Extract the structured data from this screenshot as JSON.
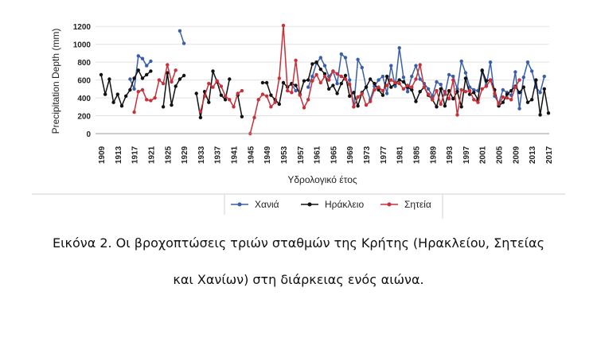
{
  "chart_data": {
    "type": "line",
    "title": "",
    "xlabel": "Υδρολογικό έτος",
    "ylabel": "Precipitation Depth (mm)",
    "ylim": [
      0,
      1300
    ],
    "yticks": [
      0,
      200,
      400,
      600,
      800,
      1000,
      1200
    ],
    "xlim": [
      1909,
      2017
    ],
    "xticks": [
      1909,
      1913,
      1917,
      1921,
      1925,
      1929,
      1933,
      1937,
      1941,
      1945,
      1949,
      1953,
      1957,
      1961,
      1965,
      1969,
      1973,
      1977,
      1981,
      1985,
      1989,
      1993,
      1997,
      2001,
      2005,
      2009,
      2013,
      2017
    ],
    "grid": true,
    "legend_position": "bottom",
    "series": [
      {
        "name": "Χανιά",
        "color": "#3a5fa8",
        "points": [
          [
            1916,
            610
          ],
          [
            1917,
            500
          ],
          [
            1918,
            870
          ],
          [
            1919,
            840
          ],
          [
            1920,
            760
          ],
          [
            1921,
            810
          ],
          [
            1928,
            1150
          ],
          [
            1929,
            1010
          ],
          [
            1955,
            550
          ],
          [
            1956,
            480
          ],
          [
            1959,
            520
          ],
          [
            1960,
            640
          ],
          [
            1961,
            790
          ],
          [
            1962,
            850
          ],
          [
            1963,
            760
          ],
          [
            1964,
            640
          ],
          [
            1965,
            700
          ],
          [
            1966,
            560
          ],
          [
            1967,
            890
          ],
          [
            1968,
            850
          ],
          [
            1969,
            600
          ],
          [
            1970,
            300
          ],
          [
            1971,
            830
          ],
          [
            1972,
            740
          ],
          [
            1973,
            520
          ],
          [
            1974,
            380
          ],
          [
            1975,
            530
          ],
          [
            1976,
            600
          ],
          [
            1977,
            640
          ],
          [
            1978,
            450
          ],
          [
            1979,
            760
          ],
          [
            1980,
            530
          ],
          [
            1981,
            960
          ],
          [
            1982,
            630
          ],
          [
            1983,
            470
          ],
          [
            1984,
            640
          ],
          [
            1985,
            760
          ],
          [
            1986,
            610
          ],
          [
            1987,
            560
          ],
          [
            1988,
            500
          ],
          [
            1989,
            420
          ],
          [
            1990,
            580
          ],
          [
            1991,
            550
          ],
          [
            1992,
            440
          ],
          [
            1993,
            660
          ],
          [
            1994,
            640
          ],
          [
            1995,
            500
          ],
          [
            1996,
            810
          ],
          [
            1997,
            680
          ],
          [
            1998,
            520
          ],
          [
            1999,
            490
          ],
          [
            2000,
            480
          ],
          [
            2001,
            700
          ],
          [
            2002,
            540
          ],
          [
            2003,
            800
          ],
          [
            2004,
            420
          ],
          [
            2005,
            340
          ],
          [
            2006,
            490
          ],
          [
            2007,
            460
          ],
          [
            2008,
            430
          ],
          [
            2009,
            690
          ],
          [
            2010,
            280
          ],
          [
            2011,
            630
          ],
          [
            2012,
            800
          ],
          [
            2013,
            700
          ],
          [
            2014,
            520
          ],
          [
            2015,
            460
          ],
          [
            2016,
            640
          ]
        ]
      },
      {
        "name": "Ηράκλειο",
        "color": "#111111",
        "points": [
          [
            1909,
            660
          ],
          [
            1910,
            440
          ],
          [
            1911,
            610
          ],
          [
            1912,
            350
          ],
          [
            1913,
            440
          ],
          [
            1914,
            310
          ],
          [
            1915,
            420
          ],
          [
            1916,
            490
          ],
          [
            1917,
            620
          ],
          [
            1918,
            710
          ],
          [
            1919,
            620
          ],
          [
            1920,
            660
          ],
          [
            1921,
            700
          ],
          [
            1924,
            300
          ],
          [
            1925,
            680
          ],
          [
            1926,
            320
          ],
          [
            1927,
            530
          ],
          [
            1928,
            610
          ],
          [
            1929,
            650
          ],
          [
            1932,
            450
          ],
          [
            1933,
            180
          ],
          [
            1934,
            470
          ],
          [
            1935,
            350
          ],
          [
            1936,
            700
          ],
          [
            1937,
            580
          ],
          [
            1938,
            430
          ],
          [
            1939,
            380
          ],
          [
            1940,
            610
          ],
          [
            1942,
            430
          ],
          [
            1943,
            190
          ],
          [
            1948,
            570
          ],
          [
            1949,
            570
          ],
          [
            1950,
            430
          ],
          [
            1951,
            380
          ],
          [
            1952,
            330
          ],
          [
            1953,
            570
          ],
          [
            1954,
            520
          ],
          [
            1955,
            560
          ],
          [
            1956,
            540
          ],
          [
            1957,
            440
          ],
          [
            1958,
            590
          ],
          [
            1959,
            600
          ],
          [
            1960,
            780
          ],
          [
            1961,
            800
          ],
          [
            1962,
            720
          ],
          [
            1963,
            670
          ],
          [
            1964,
            500
          ],
          [
            1965,
            540
          ],
          [
            1966,
            450
          ],
          [
            1967,
            560
          ],
          [
            1968,
            650
          ],
          [
            1969,
            420
          ],
          [
            1970,
            460
          ],
          [
            1971,
            310
          ],
          [
            1972,
            460
          ],
          [
            1973,
            520
          ],
          [
            1974,
            610
          ],
          [
            1975,
            560
          ],
          [
            1976,
            490
          ],
          [
            1977,
            430
          ],
          [
            1978,
            640
          ],
          [
            1979,
            520
          ],
          [
            1980,
            560
          ],
          [
            1981,
            600
          ],
          [
            1982,
            580
          ],
          [
            1983,
            520
          ],
          [
            1984,
            490
          ],
          [
            1985,
            360
          ],
          [
            1986,
            470
          ],
          [
            1987,
            520
          ],
          [
            1988,
            430
          ],
          [
            1989,
            380
          ],
          [
            1990,
            300
          ],
          [
            1991,
            500
          ],
          [
            1992,
            310
          ],
          [
            1993,
            480
          ],
          [
            1994,
            390
          ],
          [
            1995,
            470
          ],
          [
            1996,
            300
          ],
          [
            1997,
            620
          ],
          [
            1998,
            440
          ],
          [
            1999,
            460
          ],
          [
            2000,
            380
          ],
          [
            2001,
            710
          ],
          [
            2002,
            590
          ],
          [
            2003,
            600
          ],
          [
            2004,
            490
          ],
          [
            2005,
            310
          ],
          [
            2006,
            350
          ],
          [
            2007,
            440
          ],
          [
            2008,
            480
          ],
          [
            2009,
            530
          ],
          [
            2010,
            460
          ],
          [
            2011,
            520
          ],
          [
            2012,
            350
          ],
          [
            2013,
            380
          ],
          [
            2014,
            600
          ],
          [
            2015,
            210
          ],
          [
            2016,
            500
          ],
          [
            2017,
            230
          ]
        ]
      },
      {
        "name": "Σητεία",
        "color": "#c8303a",
        "points": [
          [
            1917,
            240
          ],
          [
            1918,
            470
          ],
          [
            1919,
            490
          ],
          [
            1920,
            380
          ],
          [
            1921,
            370
          ],
          [
            1922,
            400
          ],
          [
            1923,
            600
          ],
          [
            1924,
            560
          ],
          [
            1925,
            770
          ],
          [
            1926,
            580
          ],
          [
            1927,
            710
          ],
          [
            1933,
            250
          ],
          [
            1934,
            420
          ],
          [
            1935,
            560
          ],
          [
            1936,
            520
          ],
          [
            1937,
            590
          ],
          [
            1938,
            530
          ],
          [
            1939,
            420
          ],
          [
            1940,
            380
          ],
          [
            1941,
            300
          ],
          [
            1942,
            450
          ],
          [
            1943,
            480
          ],
          [
            1945,
            0
          ],
          [
            1946,
            180
          ],
          [
            1947,
            380
          ],
          [
            1948,
            440
          ],
          [
            1949,
            420
          ],
          [
            1950,
            300
          ],
          [
            1951,
            350
          ],
          [
            1952,
            620
          ],
          [
            1953,
            1210
          ],
          [
            1954,
            480
          ],
          [
            1955,
            460
          ],
          [
            1956,
            820
          ],
          [
            1957,
            430
          ],
          [
            1958,
            290
          ],
          [
            1959,
            380
          ],
          [
            1960,
            590
          ],
          [
            1961,
            660
          ],
          [
            1962,
            570
          ],
          [
            1963,
            640
          ],
          [
            1964,
            600
          ],
          [
            1965,
            700
          ],
          [
            1966,
            670
          ],
          [
            1967,
            640
          ],
          [
            1968,
            610
          ],
          [
            1969,
            550
          ],
          [
            1970,
            300
          ],
          [
            1971,
            410
          ],
          [
            1972,
            450
          ],
          [
            1973,
            320
          ],
          [
            1974,
            360
          ],
          [
            1975,
            490
          ],
          [
            1976,
            520
          ],
          [
            1977,
            480
          ],
          [
            1978,
            540
          ],
          [
            1979,
            600
          ],
          [
            1980,
            570
          ],
          [
            1981,
            560
          ],
          [
            1982,
            500
          ],
          [
            1983,
            540
          ],
          [
            1984,
            520
          ],
          [
            1985,
            610
          ],
          [
            1986,
            770
          ],
          [
            1987,
            520
          ],
          [
            1988,
            440
          ],
          [
            1989,
            380
          ],
          [
            1990,
            480
          ],
          [
            1991,
            330
          ],
          [
            1992,
            470
          ],
          [
            1993,
            390
          ],
          [
            1994,
            600
          ],
          [
            1995,
            210
          ],
          [
            1996,
            490
          ],
          [
            1997,
            470
          ],
          [
            1998,
            480
          ],
          [
            1999,
            380
          ],
          [
            2000,
            350
          ],
          [
            2001,
            500
          ],
          [
            2002,
            530
          ],
          [
            2003,
            600
          ],
          [
            2004,
            450
          ],
          [
            2005,
            330
          ],
          [
            2006,
            410
          ],
          [
            2007,
            400
          ],
          [
            2008,
            380
          ],
          [
            2009,
            520
          ],
          [
            2010,
            600
          ]
        ]
      }
    ]
  },
  "caption": {
    "line1": "Εικόνα 2. Οι βροχοπτώσεις τριών σταθμών της Κρήτης (Ηρακλείου, Σητείας",
    "line2": "και Χανίων) στη διάρκειας ενός αιώνα."
  }
}
